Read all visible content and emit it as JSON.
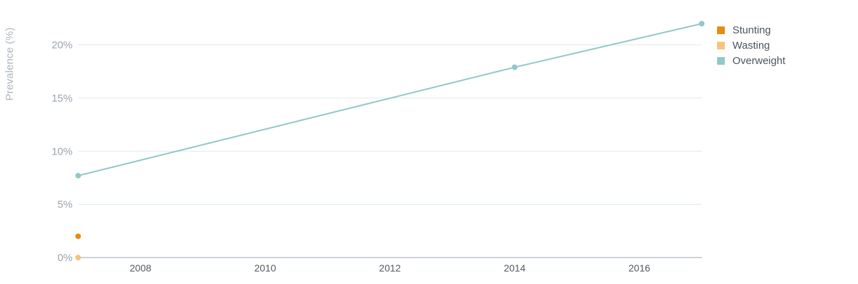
{
  "colors": {
    "stunting": "#e88b0e",
    "wasting": "#f7c37a",
    "overweight": "#92c8c7",
    "grid": "#dcebea",
    "axis": "#9aa5b0",
    "tick_text": "#9aa4ad",
    "x_tick_text": "#4f5961"
  },
  "chart_data": {
    "type": "line",
    "title": "",
    "xlabel": "",
    "ylabel": "Prevalence (%)",
    "x_ticks": [
      "2008",
      "2010",
      "2012",
      "2014",
      "2016"
    ],
    "y_ticks": [
      "0%",
      "5%",
      "10%",
      "15%",
      "20%"
    ],
    "xlim": [
      2007,
      2017
    ],
    "ylim": [
      0,
      22
    ],
    "grid": true,
    "legend_position": "right-top",
    "series": [
      {
        "name": "Stunting",
        "points": [
          {
            "x": 2007,
            "y": 2
          }
        ]
      },
      {
        "name": "Wasting",
        "points": [
          {
            "x": 2007,
            "y": 0
          }
        ]
      },
      {
        "name": "Overweight",
        "points": [
          {
            "x": 2007,
            "y": 7.7
          },
          {
            "x": 2014,
            "y": 17.9
          },
          {
            "x": 2017,
            "y": 22
          }
        ]
      }
    ]
  }
}
